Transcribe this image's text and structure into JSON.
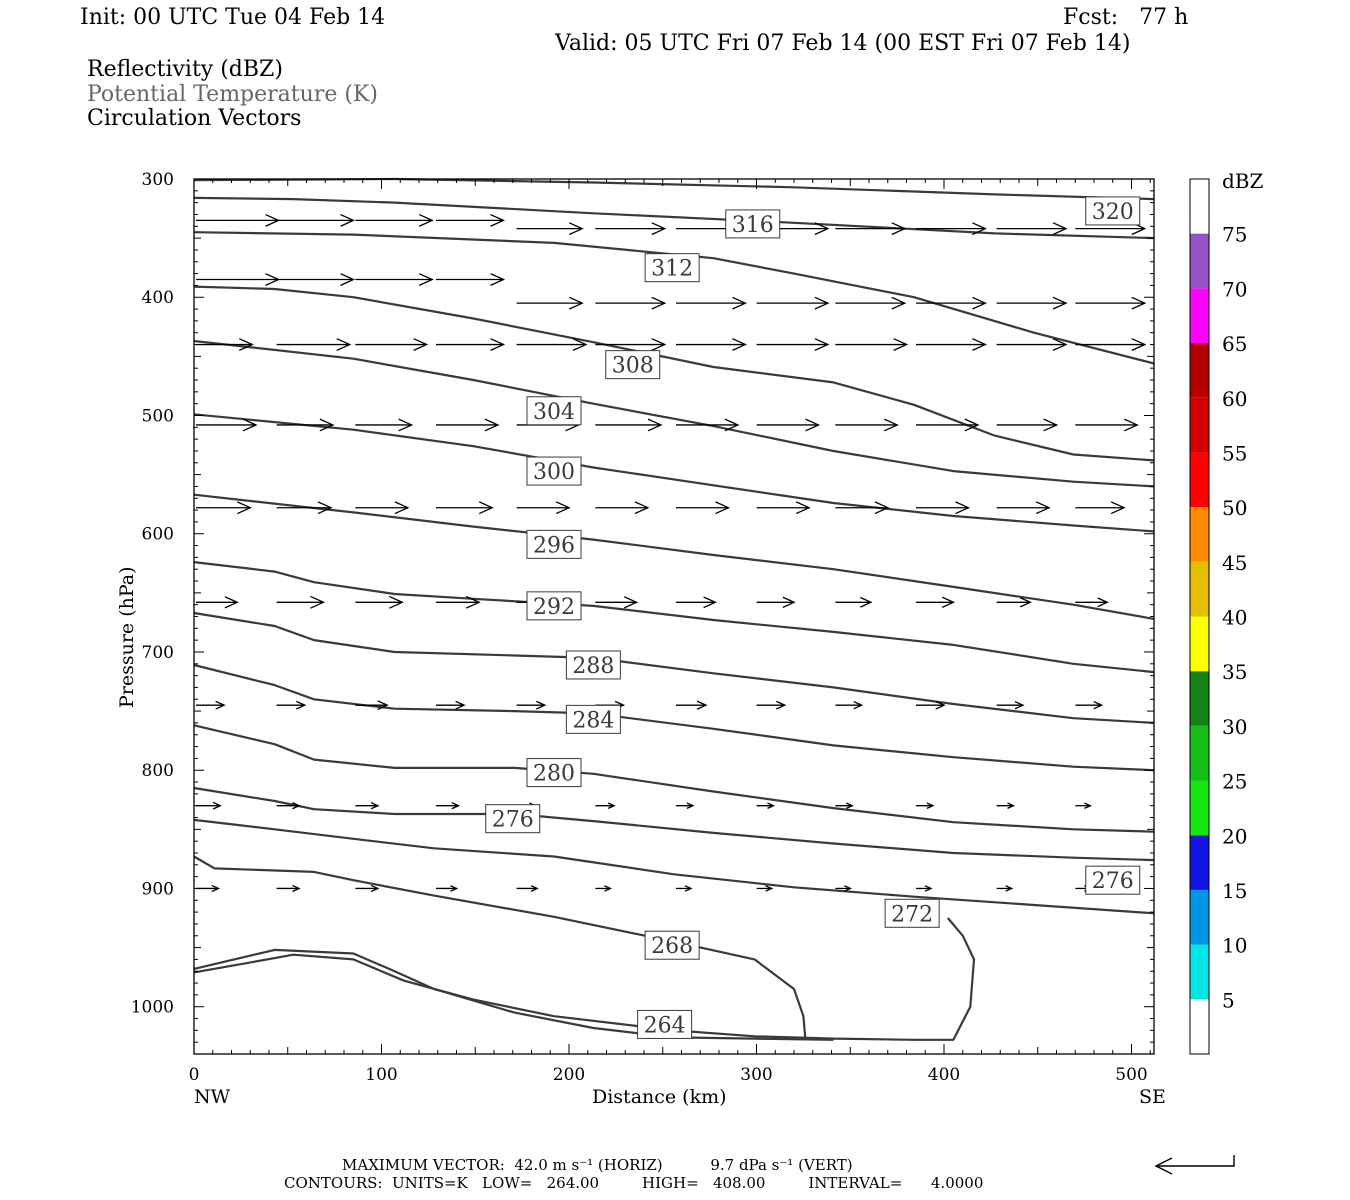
{
  "header": {
    "init": "Init: 00 UTC Tue 04 Feb 14",
    "fcst": "Fcst:   77 h",
    "valid": "Valid: 05 UTC Fri 07 Feb 14 (00 EST Fri 07 Feb 14)"
  },
  "legend": {
    "field1": "Reflectivity (dBZ)",
    "field2": "Potential Temperature (K)",
    "field3": "Circulation Vectors"
  },
  "colors": {
    "contour": "#3a3a3a",
    "legend_field2": "#666666",
    "cbar": [
      "#00e6e6",
      "#0096e6",
      "#1414e6",
      "#14e614",
      "#14be14",
      "#148214",
      "#ffff00",
      "#e6be00",
      "#ff8c00",
      "#ff0000",
      "#d70000",
      "#b40000",
      "#ff00ff",
      "#9650c8"
    ]
  },
  "footer": {
    "max_vector": "MAXIMUM VECTOR:  42.0 m s⁻¹ (HORIZ)          9.7 dPa s⁻¹ (VERT)",
    "contours": "CONTOURS:  UNITS=K   LOW=   264.00         HIGH=   408.00         INTERVAL=      4.0000"
  },
  "chart_data": {
    "type": "line",
    "xlabel": "Distance (km)",
    "ylabel": "Pressure (hPa)",
    "xlim": [
      0,
      512
    ],
    "ylim": [
      1040,
      300
    ],
    "y_reversed": true,
    "x_ticks": [
      "0",
      "100",
      "200",
      "300",
      "400",
      "500"
    ],
    "x_tick_values": [
      0,
      100,
      200,
      300,
      400,
      500
    ],
    "y_ticks": [
      "300",
      "400",
      "500",
      "600",
      "700",
      "800",
      "900",
      "1000"
    ],
    "y_tick_values": [
      300,
      400,
      500,
      600,
      700,
      800,
      900,
      1000
    ],
    "x_end_labels": {
      "left": "NW",
      "right": "SE"
    },
    "colorbar": {
      "unit": "dBZ",
      "tick_labels": [
        "5",
        "10",
        "15",
        "20",
        "25",
        "30",
        "35",
        "40",
        "45",
        "50",
        "55",
        "60",
        "65",
        "70",
        "75"
      ]
    },
    "contour_labels": [
      {
        "text": "320",
        "x": 490,
        "p": 327
      },
      {
        "text": "316",
        "x": 298,
        "p": 338
      },
      {
        "text": "312",
        "x": 255,
        "p": 375
      },
      {
        "text": "308",
        "x": 234,
        "p": 457
      },
      {
        "text": "304",
        "x": 192,
        "p": 496
      },
      {
        "text": "300",
        "x": 192,
        "p": 547
      },
      {
        "text": "296",
        "x": 192,
        "p": 609
      },
      {
        "text": "292",
        "x": 192,
        "p": 661
      },
      {
        "text": "288",
        "x": 213,
        "p": 711
      },
      {
        "text": "284",
        "x": 213,
        "p": 757
      },
      {
        "text": "280",
        "x": 192,
        "p": 802
      },
      {
        "text": "276",
        "x": 170,
        "p": 841
      },
      {
        "text": "276",
        "x": 490,
        "p": 893
      },
      {
        "text": "272",
        "x": 383,
        "p": 921
      },
      {
        "text": "268",
        "x": 255,
        "p": 948
      },
      {
        "text": "264",
        "x": 251,
        "p": 1015
      }
    ],
    "series": [
      {
        "values": [
          [
            0,
            301
          ],
          [
            107,
            300
          ],
          [
            213,
            303
          ],
          [
            320,
            307
          ],
          [
            427,
            313
          ],
          [
            512,
            317
          ]
        ]
      },
      {
        "values": [
          [
            0,
            316
          ],
          [
            53,
            317
          ],
          [
            107,
            320
          ],
          [
            213,
            329
          ],
          [
            320,
            337
          ],
          [
            427,
            346
          ],
          [
            512,
            350
          ]
        ]
      },
      {
        "values": [
          [
            0,
            345
          ],
          [
            85,
            347
          ],
          [
            192,
            354
          ],
          [
            277,
            367
          ],
          [
            320,
            380
          ],
          [
            384,
            400
          ],
          [
            448,
            430
          ],
          [
            512,
            456
          ]
        ]
      },
      {
        "values": [
          [
            0,
            391
          ],
          [
            43,
            393
          ],
          [
            85,
            400
          ],
          [
            149,
            418
          ],
          [
            213,
            438
          ],
          [
            277,
            459
          ],
          [
            341,
            472
          ],
          [
            384,
            491
          ],
          [
            427,
            517
          ],
          [
            469,
            533
          ],
          [
            512,
            538
          ]
        ]
      },
      {
        "values": [
          [
            0,
            437
          ],
          [
            85,
            452
          ],
          [
            149,
            470
          ],
          [
            213,
            490
          ],
          [
            277,
            509
          ],
          [
            341,
            530
          ],
          [
            405,
            547
          ],
          [
            469,
            556
          ],
          [
            512,
            560
          ]
        ]
      },
      {
        "values": [
          [
            0,
            499
          ],
          [
            85,
            512
          ],
          [
            149,
            526
          ],
          [
            213,
            544
          ],
          [
            277,
            559
          ],
          [
            341,
            574
          ],
          [
            405,
            585
          ],
          [
            469,
            593
          ],
          [
            512,
            598
          ]
        ]
      },
      {
        "values": [
          [
            0,
            567
          ],
          [
            85,
            582
          ],
          [
            149,
            594
          ],
          [
            213,
            605
          ],
          [
            277,
            618
          ],
          [
            341,
            630
          ],
          [
            405,
            645
          ],
          [
            469,
            660
          ],
          [
            512,
            672
          ]
        ]
      },
      {
        "values": [
          [
            0,
            624
          ],
          [
            43,
            632
          ],
          [
            64,
            641
          ],
          [
            107,
            651
          ],
          [
            149,
            655
          ],
          [
            213,
            661
          ],
          [
            277,
            673
          ],
          [
            341,
            683
          ],
          [
            405,
            694
          ],
          [
            469,
            710
          ],
          [
            512,
            717
          ]
        ]
      },
      {
        "values": [
          [
            0,
            667
          ],
          [
            43,
            678
          ],
          [
            64,
            690
          ],
          [
            107,
            700
          ],
          [
            171,
            703
          ],
          [
            213,
            705
          ],
          [
            277,
            718
          ],
          [
            341,
            730
          ],
          [
            405,
            744
          ],
          [
            469,
            756
          ],
          [
            512,
            760
          ]
        ]
      },
      {
        "values": [
          [
            0,
            711
          ],
          [
            43,
            728
          ],
          [
            64,
            740
          ],
          [
            107,
            748
          ],
          [
            171,
            750
          ],
          [
            213,
            752
          ],
          [
            277,
            765
          ],
          [
            341,
            779
          ],
          [
            405,
            789
          ],
          [
            469,
            797
          ],
          [
            512,
            800
          ]
        ]
      },
      {
        "values": [
          [
            0,
            762
          ],
          [
            43,
            778
          ],
          [
            64,
            791
          ],
          [
            107,
            798
          ],
          [
            171,
            798
          ],
          [
            213,
            803
          ],
          [
            277,
            818
          ],
          [
            341,
            832
          ],
          [
            405,
            844
          ],
          [
            469,
            850
          ],
          [
            512,
            852
          ]
        ]
      },
      {
        "values": [
          [
            0,
            815
          ],
          [
            43,
            826
          ],
          [
            64,
            833
          ],
          [
            107,
            837
          ],
          [
            171,
            837
          ],
          [
            213,
            843
          ],
          [
            277,
            853
          ],
          [
            341,
            862
          ],
          [
            405,
            870
          ],
          [
            469,
            874
          ],
          [
            512,
            876
          ]
        ]
      },
      {
        "values": [
          [
            0,
            842
          ],
          [
            43,
            850
          ],
          [
            85,
            858
          ],
          [
            128,
            866
          ],
          [
            192,
            873
          ],
          [
            256,
            888
          ],
          [
            320,
            899
          ],
          [
            384,
            907
          ],
          [
            448,
            914
          ],
          [
            512,
            921
          ]
        ]
      },
      {
        "values": [
          [
            0,
            873
          ],
          [
            11,
            883
          ],
          [
            64,
            886
          ],
          [
            85,
            893
          ],
          [
            128,
            906
          ],
          [
            192,
            924
          ],
          [
            256,
            945
          ],
          [
            299,
            960
          ],
          [
            320,
            985
          ],
          [
            325,
            1008
          ],
          [
            326,
            1027
          ]
        ]
      },
      {
        "values": [
          [
            0,
            971
          ],
          [
            32,
            962
          ],
          [
            53,
            956
          ],
          [
            85,
            960
          ],
          [
            112,
            978
          ],
          [
            149,
            994
          ],
          [
            192,
            1008
          ],
          [
            256,
            1020
          ],
          [
            299,
            1025
          ],
          [
            341,
            1027
          ],
          [
            384,
            1028
          ],
          [
            405,
            1028
          ],
          [
            414,
            1000
          ],
          [
            416,
            960
          ],
          [
            410,
            940
          ],
          [
            402,
            925
          ]
        ]
      },
      {
        "values": [
          [
            0,
            968
          ],
          [
            43,
            952
          ],
          [
            85,
            955
          ],
          [
            107,
            970
          ],
          [
            128,
            985
          ],
          [
            171,
            1005
          ],
          [
            213,
            1018
          ],
          [
            256,
            1026
          ],
          [
            341,
            1028
          ]
        ]
      }
    ],
    "vectors": [
      {
        "p": 335,
        "x": [
          0,
          43,
          85,
          128
        ],
        "u": [
          44,
          41,
          41,
          36
        ]
      },
      {
        "p": 385,
        "x": [
          0,
          43,
          85,
          128
        ],
        "u": [
          44,
          41,
          41,
          36
        ]
      },
      {
        "p": 342,
        "x": [
          171,
          213,
          256,
          299,
          341,
          384,
          427,
          469
        ],
        "u": [
          35,
          37,
          37,
          38,
          37,
          37,
          37,
          37
        ]
      },
      {
        "p": 405,
        "x": [
          171,
          213,
          256,
          299,
          341,
          384,
          427,
          469
        ],
        "u": [
          35,
          37,
          37,
          38,
          37,
          37,
          37,
          37
        ]
      },
      {
        "p": 440,
        "x": [
          0,
          43,
          85,
          128,
          171,
          213,
          256,
          299,
          341,
          384,
          427,
          469
        ],
        "u": [
          30,
          39,
          38,
          36,
          37,
          37,
          37,
          38,
          38,
          37,
          37,
          37
        ]
      },
      {
        "p": 508,
        "x": [
          0,
          43,
          85,
          128,
          171,
          213,
          256,
          299,
          341,
          384,
          427,
          469
        ],
        "u": [
          32,
          30,
          30,
          33,
          33,
          35,
          33,
          33,
          33,
          33,
          32,
          33
        ]
      },
      {
        "p": 578,
        "x": [
          0,
          43,
          85,
          128,
          171,
          213,
          256,
          299,
          341,
          384,
          427,
          469
        ],
        "u": [
          29,
          29,
          28,
          30,
          28,
          28,
          28,
          28,
          28,
          28,
          28,
          26
        ]
      },
      {
        "p": 658,
        "x": [
          0,
          43,
          85,
          128,
          171,
          213,
          256,
          299,
          341,
          384,
          427,
          469
        ],
        "u": [
          22,
          25,
          25,
          23,
          25,
          22,
          21,
          20,
          19,
          20,
          18,
          17
        ]
      },
      {
        "p": 745,
        "x": [
          0,
          43,
          85,
          128,
          171,
          213,
          256,
          299,
          341,
          384,
          427,
          469
        ],
        "u": [
          15,
          15,
          17,
          15,
          15,
          15,
          16,
          15,
          14,
          15,
          14,
          14
        ]
      },
      {
        "p": 830,
        "x": [
          0,
          43,
          85,
          128,
          171,
          213,
          256,
          299,
          341,
          384,
          427,
          469
        ],
        "u": [
          13,
          12,
          12,
          12,
          10,
          10,
          9,
          9,
          9,
          9,
          9,
          8
        ]
      },
      {
        "p": 900,
        "x": [
          0,
          43,
          85,
          128,
          171,
          213,
          256,
          299,
          341,
          384,
          427,
          469
        ],
        "u": [
          12,
          12,
          12,
          11,
          11,
          8,
          8,
          8,
          8,
          8,
          8,
          8
        ]
      }
    ],
    "max_vector_symbol": "reference arrow"
  }
}
